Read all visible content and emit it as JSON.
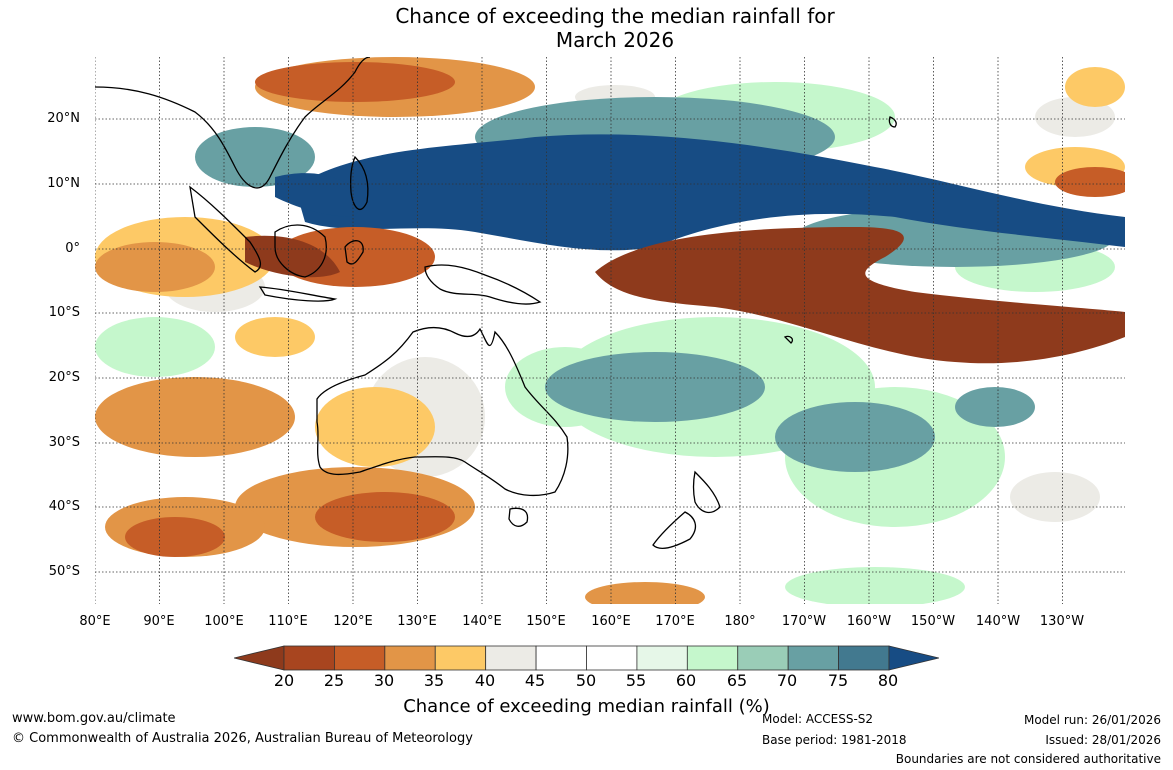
{
  "title_line1": "Chance of exceeding the median rainfall for",
  "title_line2": "March 2026",
  "latitude_labels": [
    "20°N",
    "10°N",
    "0°",
    "10°S",
    "20°S",
    "30°S",
    "40°S",
    "50°S"
  ],
  "longitude_labels": [
    "80°E",
    "90°E",
    "100°E",
    "110°E",
    "120°E",
    "130°E",
    "140°E",
    "150°E",
    "160°E",
    "170°E",
    "180°",
    "170°W",
    "160°W",
    "150°W",
    "140°W",
    "130°W"
  ],
  "colorbar": {
    "ticks": [
      "20",
      "25",
      "30",
      "35",
      "40",
      "45",
      "50",
      "55",
      "60",
      "65",
      "70",
      "75",
      "80"
    ],
    "colors": [
      "#8e3a1c",
      "#a8451f",
      "#c65d27",
      "#e29547",
      "#fdc966",
      "#ecebe6",
      "#ffffff",
      "#ffffff",
      "#e6f7e8",
      "#c5f7cc",
      "#9acdb7",
      "#68a0a3",
      "#42798f",
      "#174c84"
    ],
    "label": "Chance of exceeding median rainfall (%)"
  },
  "footer": {
    "website": "www.bom.gov.au/climate",
    "copyright": "© Commonwealth of Australia 2026, Australian Bureau of Meteorology",
    "model": "Model: ACCESS-S2",
    "base_period": "Base period: 1981-2018",
    "model_run": "Model run: 26/01/2026",
    "issued": "Issued: 28/01/2026",
    "disclaimer": "Boundaries are not considered authoritative"
  }
}
